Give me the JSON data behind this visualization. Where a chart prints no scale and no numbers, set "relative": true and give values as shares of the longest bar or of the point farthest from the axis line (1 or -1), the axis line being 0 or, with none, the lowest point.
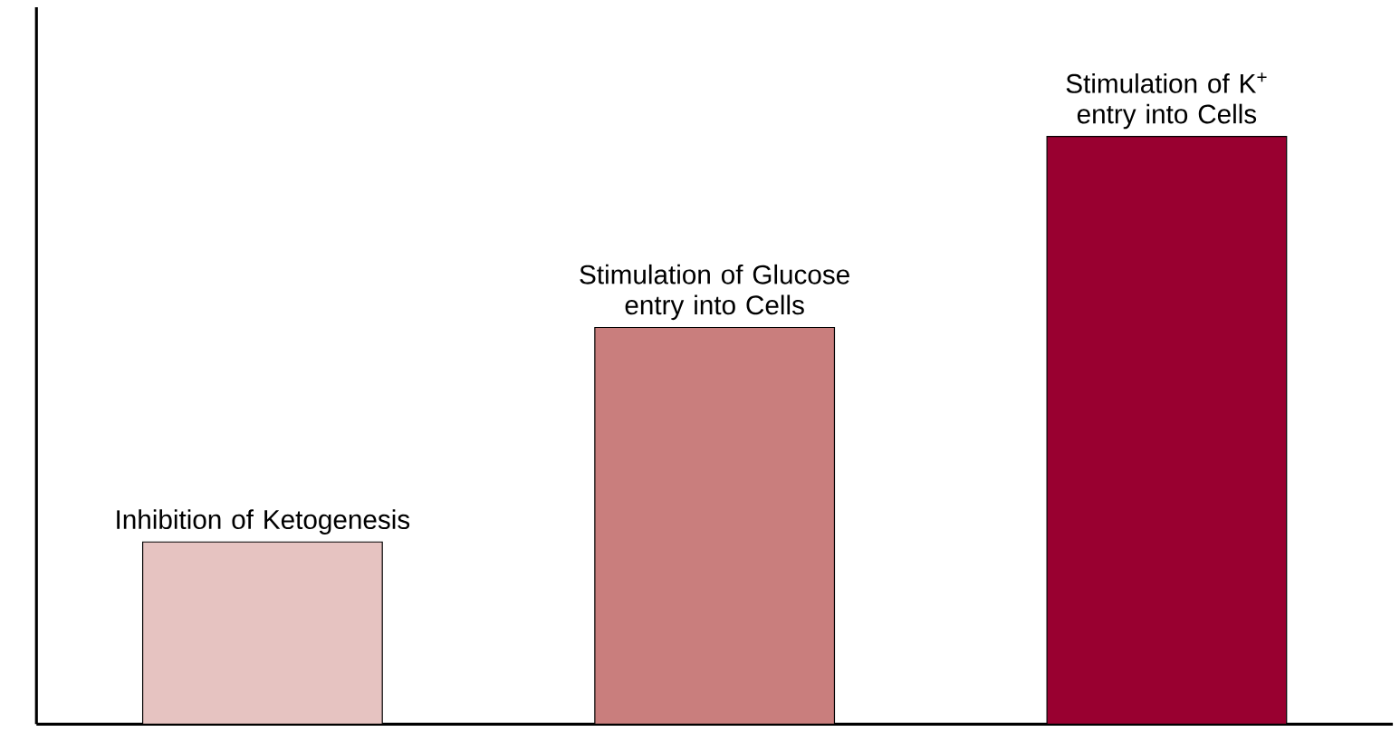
{
  "chart_data": {
    "type": "bar",
    "relative": true,
    "categories": [
      "Inhibition of Ketogenesis",
      "Stimulation of Glucose entry into Cells",
      "Stimulation of K$^{+}$ entry into Cells"
    ],
    "values": [
      0.31,
      0.675,
      1
    ],
    "colors": [
      "#e6c3c1",
      "#c97e7d",
      "#990030"
    ]
  }
}
